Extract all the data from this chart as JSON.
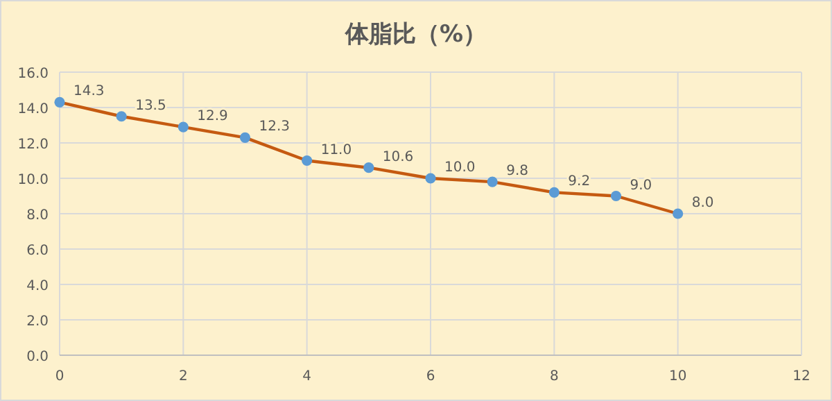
{
  "chart_data": {
    "type": "line",
    "title": "体脂比（%）",
    "x": [
      0,
      1,
      2,
      3,
      4,
      5,
      6,
      7,
      8,
      9,
      10
    ],
    "series": [
      {
        "color": "#c55a11",
        "colors": [
          "#5b9bd5",
          "#5b9bd5",
          "#5b9bd5",
          "#5b9bd5",
          "#5b9bd5",
          "#5b9bd5",
          "#5b9bd5",
          "#5b9bd5",
          "#5b9bd5",
          "#5b9bd5",
          "#5b9bd5"
        ],
        "values": [
          14.3,
          13.5,
          12.9,
          12.3,
          11.0,
          10.6,
          10.0,
          9.8,
          9.2,
          9.0,
          8.0
        ],
        "value_labels": [
          "14.3",
          "13.5",
          "12.9",
          "12.3",
          "11.0",
          "10.6",
          "10.0",
          "9.8",
          "9.2",
          "9.0",
          "8.0"
        ]
      }
    ],
    "xlim": [
      0,
      12
    ],
    "xticks": [
      0,
      2,
      4,
      6,
      8,
      10,
      12
    ],
    "ylim": [
      0,
      16
    ],
    "yticks": [
      {
        "value": 0,
        "label": "0.0"
      },
      {
        "value": 2,
        "label": "2.0"
      },
      {
        "value": 4,
        "label": "4.0"
      },
      {
        "value": 6,
        "label": "6.0"
      },
      {
        "value": 8,
        "label": "8.0"
      },
      {
        "value": 10,
        "label": "10.0"
      },
      {
        "value": 12,
        "label": "12.0"
      },
      {
        "value": 14,
        "label": "14.0"
      },
      {
        "value": 16,
        "label": "16.0"
      }
    ],
    "grid": true,
    "marker": "circle",
    "line_style": "solid"
  }
}
